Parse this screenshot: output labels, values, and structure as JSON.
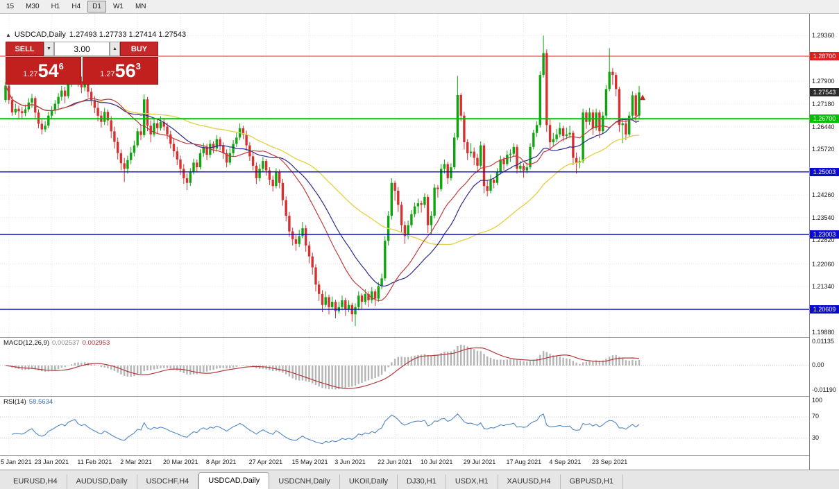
{
  "timeframes": {
    "items": [
      "15",
      "M30",
      "H1",
      "H4",
      "D1",
      "W1",
      "MN"
    ],
    "active": "D1"
  },
  "chart": {
    "title": "USDCAD,Daily",
    "ohlc": "1.27493 1.27733 1.27414 1.27543"
  },
  "trade_panel": {
    "sell_label": "SELL",
    "buy_label": "BUY",
    "volume": "3.00",
    "sell_big": "1.27",
    "sell_main": "54",
    "sell_sup": "6",
    "buy_big": "1.27",
    "buy_main": "56",
    "buy_sup": "3"
  },
  "icons": {
    "collapse": "▲",
    "volume_down": "▼",
    "volume_up": "▲",
    "tab_scroll": "▸"
  },
  "indicators": {
    "macd": {
      "name": "MACD(12,26,9)",
      "value_main": "0.002537",
      "value_signal": "0.002953"
    },
    "rsi": {
      "name": "RSI(14)",
      "value": "58.5634"
    }
  },
  "axis": {
    "price_grid": [
      {
        "v": 1.2936,
        "label": "1.29360"
      },
      {
        "v": 1.279,
        "label": "1.27900"
      },
      {
        "v": 1.2718,
        "label": "1.27180"
      },
      {
        "v": 1.2644,
        "label": "1.26440"
      },
      {
        "v": 1.2572,
        "label": "1.25720"
      },
      {
        "v": 1.2426,
        "label": "1.24260"
      },
      {
        "v": 1.2354,
        "label": "1.23540"
      },
      {
        "v": 1.2282,
        "label": "1.22820"
      },
      {
        "v": 1.2206,
        "label": "1.22060"
      },
      {
        "v": 1.2134,
        "label": "1.21340"
      },
      {
        "v": 1.1988,
        "label": "1.19880"
      }
    ],
    "macd": [
      {
        "v": 0.01135,
        "label": "0.01135"
      },
      {
        "v": 0,
        "label": "0.00"
      },
      {
        "v": -0.0119,
        "label": "-0.01190"
      }
    ],
    "rsi": [
      {
        "v": 100,
        "label": "100"
      },
      {
        "v": 70,
        "label": "70"
      },
      {
        "v": 30,
        "label": "30"
      }
    ]
  },
  "levels": [
    {
      "v": 1.287,
      "label": "1.28700",
      "color": "#e02020",
      "w": 1
    },
    {
      "v": 1.267,
      "label": "1.26700",
      "color": "#00c000",
      "w": 2
    },
    {
      "v": 1.25003,
      "label": "1.25003",
      "color": "#0a0ad0",
      "w": 1.4
    },
    {
      "v": 1.23003,
      "label": "1.23003",
      "color": "#0a0ad0",
      "w": 1.4
    },
    {
      "v": 1.20609,
      "label": "1.20609",
      "color": "#0a0ad0",
      "w": 1.4
    }
  ],
  "current_price": {
    "v": 1.27543,
    "label": "1.27543",
    "badge": "#2b2b2b"
  },
  "colors": {
    "up": "#0ea50e",
    "down": "#d63030",
    "ma_slow": "#e3d34b",
    "ma_mid": "#2b2b8c",
    "ma_fast": "#c23b3b",
    "macd_hist": "#b5b5b5",
    "macd_signal": "#b03a3a",
    "rsi": "#4f86c6",
    "grid": "#e6e6e6"
  },
  "tabs": {
    "items": [
      "EURUSD,H4",
      "AUDUSD,Daily",
      "USDCHF,H4",
      "USDCAD,Daily",
      "USDCNH,Daily",
      "UKOil,Daily",
      "DJ30,H1",
      "USDX,H1",
      "XAUUSD,H4",
      "GBPUSD,H1"
    ],
    "active": "USDCAD,Daily"
  },
  "chart_data": {
    "type": "candlestick",
    "symbol": "USDCAD",
    "period": "Daily",
    "price_range": [
      1.1981,
      1.2983
    ],
    "ma_periods": {
      "fast": 20,
      "mid": 28,
      "slow": 55
    },
    "date_labels": [
      {
        "i": 1,
        "t": "5 Jan 2021"
      },
      {
        "i": 14,
        "t": "23 Jan 2021"
      },
      {
        "i": 27,
        "t": "11 Feb 2021"
      },
      {
        "i": 40,
        "t": "2 Mar 2021"
      },
      {
        "i": 53,
        "t": "20 Mar 2021"
      },
      {
        "i": 66,
        "t": "8 Apr 2021"
      },
      {
        "i": 79,
        "t": "27 Apr 2021"
      },
      {
        "i": 92,
        "t": "15 May 2021"
      },
      {
        "i": 105,
        "t": "3 Jun 2021"
      },
      {
        "i": 118,
        "t": "22 Jun 2021"
      },
      {
        "i": 131,
        "t": "10 Jul 2021"
      },
      {
        "i": 144,
        "t": "29 Jul 2021"
      },
      {
        "i": 157,
        "t": "17 Aug 2021"
      },
      {
        "i": 170,
        "t": "4 Sep 2021"
      },
      {
        "i": 183,
        "t": "23 Sep 2021"
      }
    ],
    "candles": [
      [
        1.273,
        1.2788,
        1.2722,
        1.2776
      ],
      [
        1.2776,
        1.279,
        1.2718,
        1.273
      ],
      [
        1.273,
        1.2742,
        1.268,
        1.269
      ],
      [
        1.269,
        1.2718,
        1.2682,
        1.2702
      ],
      [
        1.2702,
        1.2712,
        1.2668,
        1.2694
      ],
      [
        1.2694,
        1.2708,
        1.267,
        1.2688
      ],
      [
        1.2688,
        1.2715,
        1.2678,
        1.27
      ],
      [
        1.27,
        1.2736,
        1.2692,
        1.2722
      ],
      [
        1.2722,
        1.275,
        1.2705,
        1.2736
      ],
      [
        1.2736,
        1.2742,
        1.2672,
        1.269
      ],
      [
        1.269,
        1.27,
        1.264,
        1.2654
      ],
      [
        1.2654,
        1.2668,
        1.262,
        1.2636
      ],
      [
        1.2636,
        1.2662,
        1.2628,
        1.2648
      ],
      [
        1.2648,
        1.2692,
        1.264,
        1.268
      ],
      [
        1.268,
        1.271,
        1.2668,
        1.2696
      ],
      [
        1.2696,
        1.273,
        1.2685,
        1.2718
      ],
      [
        1.2718,
        1.2752,
        1.2702,
        1.274
      ],
      [
        1.274,
        1.2775,
        1.2728,
        1.276
      ],
      [
        1.276,
        1.2772,
        1.272,
        1.2742
      ],
      [
        1.2742,
        1.2802,
        1.2735,
        1.279
      ],
      [
        1.279,
        1.2825,
        1.2772,
        1.2812
      ],
      [
        1.2812,
        1.2848,
        1.2798,
        1.2832
      ],
      [
        1.2832,
        1.284,
        1.2772,
        1.279
      ],
      [
        1.279,
        1.2805,
        1.2752,
        1.277
      ],
      [
        1.277,
        1.28,
        1.2758,
        1.2788
      ],
      [
        1.2788,
        1.2795,
        1.2738,
        1.2756
      ],
      [
        1.2756,
        1.2768,
        1.2712,
        1.273
      ],
      [
        1.273,
        1.2742,
        1.2688,
        1.2705
      ],
      [
        1.2705,
        1.2722,
        1.2662,
        1.268
      ],
      [
        1.268,
        1.2695,
        1.2642,
        1.266
      ],
      [
        1.266,
        1.2705,
        1.265,
        1.2692
      ],
      [
        1.2692,
        1.27,
        1.2648,
        1.2665
      ],
      [
        1.2665,
        1.2678,
        1.2608,
        1.263
      ],
      [
        1.263,
        1.2645,
        1.2575,
        1.2596
      ],
      [
        1.2596,
        1.261,
        1.254,
        1.256
      ],
      [
        1.256,
        1.2572,
        1.2505,
        1.2528
      ],
      [
        1.2528,
        1.2545,
        1.2468,
        1.251
      ],
      [
        1.251,
        1.2552,
        1.2495,
        1.2538
      ],
      [
        1.2538,
        1.258,
        1.2525,
        1.2562
      ],
      [
        1.2562,
        1.26,
        1.255,
        1.2585
      ],
      [
        1.2585,
        1.264,
        1.2578,
        1.263
      ],
      [
        1.263,
        1.2652,
        1.2602,
        1.2618
      ],
      [
        1.2618,
        1.2748,
        1.261,
        1.2732
      ],
      [
        1.2732,
        1.274,
        1.263,
        1.2648
      ],
      [
        1.2648,
        1.2665,
        1.2595,
        1.262
      ],
      [
        1.262,
        1.267,
        1.2612,
        1.2656
      ],
      [
        1.2656,
        1.2668,
        1.2622,
        1.264
      ],
      [
        1.264,
        1.2678,
        1.2632,
        1.266
      ],
      [
        1.266,
        1.2672,
        1.2632,
        1.2645
      ],
      [
        1.2645,
        1.2658,
        1.2605,
        1.262
      ],
      [
        1.262,
        1.2632,
        1.2575,
        1.259
      ],
      [
        1.259,
        1.2605,
        1.2548,
        1.2566
      ],
      [
        1.2566,
        1.258,
        1.2522,
        1.254
      ],
      [
        1.254,
        1.2552,
        1.249,
        1.251
      ],
      [
        1.251,
        1.2525,
        1.2462,
        1.248
      ],
      [
        1.248,
        1.2495,
        1.2442,
        1.2465
      ],
      [
        1.2465,
        1.2512,
        1.2455,
        1.25
      ],
      [
        1.25,
        1.2542,
        1.2492,
        1.253
      ],
      [
        1.253,
        1.254,
        1.2498,
        1.2515
      ],
      [
        1.2515,
        1.2572,
        1.2508,
        1.256
      ],
      [
        1.256,
        1.2592,
        1.2548,
        1.258
      ],
      [
        1.258,
        1.259,
        1.2538,
        1.2555
      ],
      [
        1.2555,
        1.2602,
        1.2545,
        1.259
      ],
      [
        1.259,
        1.2598,
        1.256,
        1.2575
      ],
      [
        1.2575,
        1.2618,
        1.2565,
        1.2605
      ],
      [
        1.2605,
        1.2612,
        1.257,
        1.2585
      ],
      [
        1.2585,
        1.2595,
        1.2542,
        1.256
      ],
      [
        1.256,
        1.2572,
        1.2515,
        1.253
      ],
      [
        1.253,
        1.2575,
        1.2522,
        1.256
      ],
      [
        1.256,
        1.2602,
        1.255,
        1.259
      ],
      [
        1.259,
        1.2625,
        1.258,
        1.261
      ],
      [
        1.261,
        1.2655,
        1.2602,
        1.264
      ],
      [
        1.264,
        1.2648,
        1.2605,
        1.262
      ],
      [
        1.262,
        1.2632,
        1.2568,
        1.2585
      ],
      [
        1.2585,
        1.2595,
        1.2535,
        1.255
      ],
      [
        1.255,
        1.2562,
        1.2505,
        1.252
      ],
      [
        1.252,
        1.253,
        1.2462,
        1.248
      ],
      [
        1.248,
        1.2525,
        1.247,
        1.251
      ],
      [
        1.251,
        1.2548,
        1.25,
        1.2535
      ],
      [
        1.2535,
        1.2542,
        1.2488,
        1.2505
      ],
      [
        1.2505,
        1.2515,
        1.2458,
        1.2475
      ],
      [
        1.2475,
        1.2488,
        1.2438,
        1.2455
      ],
      [
        1.2455,
        1.2512,
        1.2448,
        1.25
      ],
      [
        1.25,
        1.2508,
        1.2448,
        1.2465
      ],
      [
        1.2465,
        1.2478,
        1.2392,
        1.241
      ],
      [
        1.241,
        1.2422,
        1.2342,
        1.236
      ],
      [
        1.236,
        1.2372,
        1.2292,
        1.231
      ],
      [
        1.231,
        1.2322,
        1.2265,
        1.2285
      ],
      [
        1.2285,
        1.2298,
        1.2248,
        1.227
      ],
      [
        1.227,
        1.2315,
        1.226,
        1.2295
      ],
      [
        1.2295,
        1.234,
        1.2288,
        1.232
      ],
      [
        1.232,
        1.233,
        1.2245,
        1.2265
      ],
      [
        1.2265,
        1.2278,
        1.2208,
        1.223
      ],
      [
        1.223,
        1.2242,
        1.2172,
        1.2195
      ],
      [
        1.2195,
        1.2205,
        1.2118,
        1.214
      ],
      [
        1.214,
        1.2152,
        1.2088,
        1.211
      ],
      [
        1.211,
        1.2122,
        1.2052,
        1.2075
      ],
      [
        1.2075,
        1.2118,
        1.2068,
        1.21
      ],
      [
        1.21,
        1.2108,
        1.2045,
        1.2068
      ],
      [
        1.2068,
        1.2102,
        1.206,
        1.2085
      ],
      [
        1.2085,
        1.2092,
        1.2032,
        1.2055
      ],
      [
        1.2055,
        1.2085,
        1.2048,
        1.2068
      ],
      [
        1.2068,
        1.2105,
        1.2058,
        1.209
      ],
      [
        1.209,
        1.2098,
        1.204,
        1.2062
      ],
      [
        1.2062,
        1.209,
        1.2052,
        1.2075
      ],
      [
        1.2075,
        1.2082,
        1.2022,
        1.2045
      ],
      [
        1.2045,
        1.208,
        1.2007,
        1.2068
      ],
      [
        1.2068,
        1.2118,
        1.2058,
        1.2105
      ],
      [
        1.2105,
        1.2112,
        1.2062,
        1.2085
      ],
      [
        1.2085,
        1.2125,
        1.2075,
        1.211
      ],
      [
        1.211,
        1.2118,
        1.2068,
        1.209
      ],
      [
        1.209,
        1.2132,
        1.208,
        1.2118
      ],
      [
        1.2118,
        1.2125,
        1.2072,
        1.2095
      ],
      [
        1.2095,
        1.2148,
        1.2085,
        1.2135
      ],
      [
        1.2135,
        1.2175,
        1.2125,
        1.216
      ],
      [
        1.216,
        1.2295,
        1.2152,
        1.228
      ],
      [
        1.228,
        1.2375,
        1.2265,
        1.236
      ],
      [
        1.236,
        1.248,
        1.2348,
        1.2465
      ],
      [
        1.2465,
        1.2472,
        1.2408,
        1.244
      ],
      [
        1.244,
        1.2452,
        1.2372,
        1.2395
      ],
      [
        1.2395,
        1.2405,
        1.2308,
        1.233
      ],
      [
        1.233,
        1.2342,
        1.227,
        1.2295
      ],
      [
        1.2295,
        1.2345,
        1.2285,
        1.233
      ],
      [
        1.233,
        1.2378,
        1.2322,
        1.2365
      ],
      [
        1.2365,
        1.2402,
        1.2355,
        1.239
      ],
      [
        1.239,
        1.2415,
        1.2368,
        1.24
      ],
      [
        1.24,
        1.2408,
        1.237,
        1.2395
      ],
      [
        1.2395,
        1.2432,
        1.2385,
        1.242
      ],
      [
        1.242,
        1.2428,
        1.2305,
        1.233
      ],
      [
        1.233,
        1.2375,
        1.2302,
        1.236
      ],
      [
        1.236,
        1.2462,
        1.2352,
        1.245
      ],
      [
        1.245,
        1.2458,
        1.2418,
        1.2445
      ],
      [
        1.2445,
        1.2525,
        1.2438,
        1.251
      ],
      [
        1.251,
        1.254,
        1.2495,
        1.2525
      ],
      [
        1.2525,
        1.2532,
        1.2462,
        1.248
      ],
      [
        1.248,
        1.2528,
        1.2472,
        1.2515
      ],
      [
        1.2515,
        1.2625,
        1.2508,
        1.261
      ],
      [
        1.261,
        1.2807,
        1.2602,
        1.2746
      ],
      [
        1.2746,
        1.2752,
        1.2662,
        1.268
      ],
      [
        1.268,
        1.2692,
        1.2572,
        1.2595
      ],
      [
        1.2595,
        1.2605,
        1.2538,
        1.256
      ],
      [
        1.256,
        1.2592,
        1.2548,
        1.2565
      ],
      [
        1.2565,
        1.2578,
        1.2522,
        1.2545
      ],
      [
        1.2545,
        1.2558,
        1.2498,
        1.252
      ],
      [
        1.252,
        1.2598,
        1.2512,
        1.2585
      ],
      [
        1.2585,
        1.2592,
        1.2432,
        1.2455
      ],
      [
        1.2455,
        1.2475,
        1.2422,
        1.244
      ],
      [
        1.244,
        1.2492,
        1.2432,
        1.2475
      ],
      [
        1.2475,
        1.2482,
        1.2448,
        1.2465
      ],
      [
        1.2465,
        1.2512,
        1.2458,
        1.25
      ],
      [
        1.25,
        1.2552,
        1.2492,
        1.254
      ],
      [
        1.254,
        1.2548,
        1.2505,
        1.2525
      ],
      [
        1.2525,
        1.2568,
        1.2518,
        1.2555
      ],
      [
        1.2555,
        1.2572,
        1.2532,
        1.2558
      ],
      [
        1.2558,
        1.2592,
        1.2548,
        1.258
      ],
      [
        1.258,
        1.2588,
        1.2495,
        1.251
      ],
      [
        1.251,
        1.2535,
        1.2498,
        1.252
      ],
      [
        1.252,
        1.2528,
        1.2482,
        1.2505
      ],
      [
        1.2505,
        1.253,
        1.2495,
        1.2515
      ],
      [
        1.2515,
        1.2592,
        1.2508,
        1.258
      ],
      [
        1.258,
        1.2635,
        1.2572,
        1.2625
      ],
      [
        1.2625,
        1.2662,
        1.2612,
        1.265
      ],
      [
        1.265,
        1.2822,
        1.2642,
        1.281
      ],
      [
        1.281,
        1.2936,
        1.2802,
        1.288
      ],
      [
        1.288,
        1.2892,
        1.2628,
        1.265
      ],
      [
        1.265,
        1.2668,
        1.2572,
        1.2595
      ],
      [
        1.2595,
        1.2625,
        1.2582,
        1.2605
      ],
      [
        1.2605,
        1.2638,
        1.2595,
        1.262
      ],
      [
        1.262,
        1.2658,
        1.261,
        1.264
      ],
      [
        1.264,
        1.2648,
        1.2598,
        1.2615
      ],
      [
        1.2615,
        1.2642,
        1.2605,
        1.262
      ],
      [
        1.262,
        1.2648,
        1.2608,
        1.2625
      ],
      [
        1.2625,
        1.2632,
        1.2522,
        1.2545
      ],
      [
        1.2545,
        1.2562,
        1.2495,
        1.253
      ],
      [
        1.253,
        1.2548,
        1.2512,
        1.2535
      ],
      [
        1.2535,
        1.2702,
        1.2528,
        1.269
      ],
      [
        1.269,
        1.2698,
        1.2638,
        1.266
      ],
      [
        1.266,
        1.2705,
        1.265,
        1.269
      ],
      [
        1.269,
        1.27,
        1.2618,
        1.264
      ],
      [
        1.264,
        1.2702,
        1.2632,
        1.269
      ],
      [
        1.269,
        1.2698,
        1.2608,
        1.263
      ],
      [
        1.263,
        1.2692,
        1.2622,
        1.268
      ],
      [
        1.268,
        1.2778,
        1.2672,
        1.2765
      ],
      [
        1.2765,
        1.2896,
        1.2758,
        1.282
      ],
      [
        1.282,
        1.2832,
        1.2778,
        1.281
      ],
      [
        1.281,
        1.2818,
        1.2742,
        1.2765
      ],
      [
        1.2765,
        1.2772,
        1.2628,
        1.265
      ],
      [
        1.265,
        1.2672,
        1.2592,
        1.2655
      ],
      [
        1.2655,
        1.2668,
        1.2602,
        1.262
      ],
      [
        1.262,
        1.2692,
        1.2612,
        1.268
      ],
      [
        1.268,
        1.2758,
        1.2672,
        1.2745
      ],
      [
        1.2745,
        1.2752,
        1.2662,
        1.268
      ],
      [
        1.268,
        1.2775,
        1.2672,
        1.27543
      ]
    ]
  }
}
